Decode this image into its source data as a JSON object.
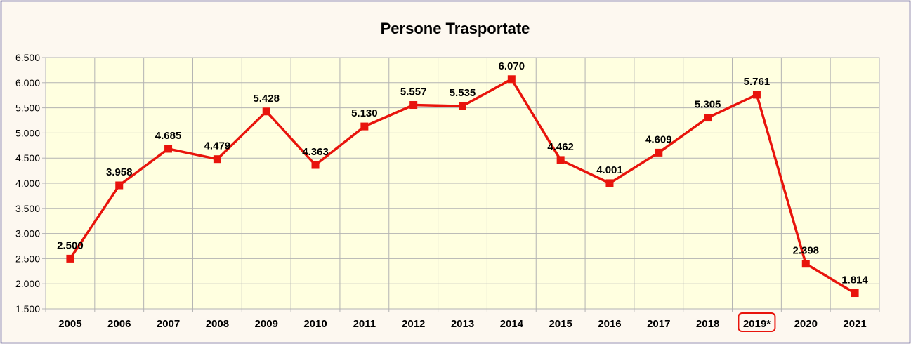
{
  "chart_data": {
    "type": "line",
    "title": "Persone Trasportate",
    "xlabel": "",
    "ylabel": "",
    "categories": [
      "2005",
      "2006",
      "2007",
      "2008",
      "2009",
      "2010",
      "2011",
      "2012",
      "2013",
      "2014",
      "2015",
      "2016",
      "2017",
      "2018",
      "2019*",
      "2020",
      "2021"
    ],
    "values": [
      2500,
      3958,
      4685,
      4479,
      5428,
      4363,
      5130,
      5557,
      5535,
      6070,
      4462,
      4001,
      4609,
      5305,
      5761,
      2398,
      1814
    ],
    "value_labels": [
      "2.500",
      "3.958",
      "4.685",
      "4.479",
      "5.428",
      "4.363",
      "5.130",
      "5.557",
      "5.535",
      "6.070",
      "4.462",
      "4.001",
      "4.609",
      "5.305",
      "5.761",
      "2.398",
      "1.814"
    ],
    "ylim": [
      1500,
      6500
    ],
    "y_ticks": [
      1500,
      2000,
      2500,
      3000,
      3500,
      4000,
      4500,
      5000,
      5500,
      6000,
      6500
    ],
    "y_tick_labels": [
      "1.500",
      "2.000",
      "2.500",
      "3.000",
      "3.500",
      "4.000",
      "4.500",
      "5.000",
      "5.500",
      "6.000",
      "6.500"
    ],
    "highlighted_category": "2019*",
    "grid": true,
    "legend": "none",
    "colors": {
      "line": "#e8140c",
      "marker": "#e8140c",
      "highlight_box": "#e8140c",
      "plot_background": "#ffffe0",
      "chart_background": "#fdf8f0",
      "grid": "#b3b3b3"
    }
  }
}
